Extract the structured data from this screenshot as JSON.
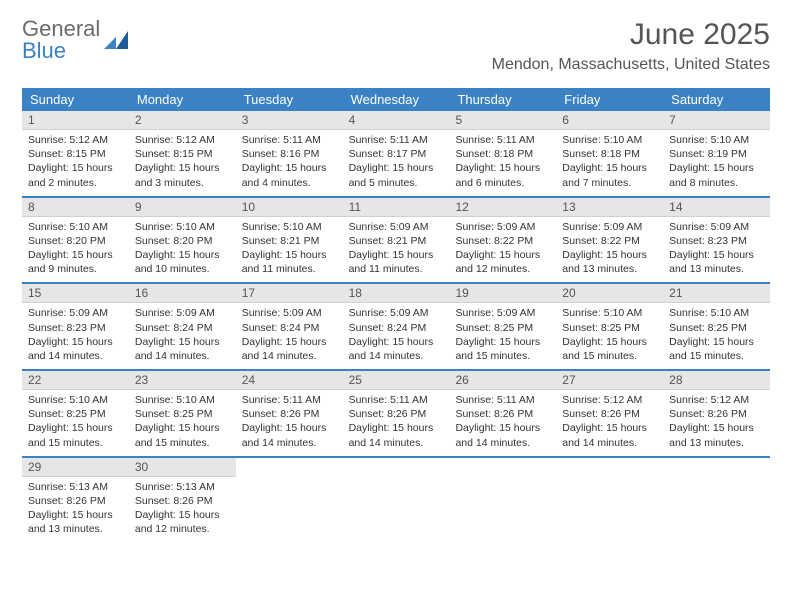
{
  "brand": {
    "word1": "General",
    "word2": "Blue"
  },
  "title": "June 2025",
  "location": "Mendon, Massachusetts, United States",
  "colors": {
    "header_bg": "#3b82c4",
    "header_text": "#ffffff",
    "daynum_bg": "#e6e6e6",
    "rule": "#3b82c4",
    "text": "#333333",
    "muted": "#555555"
  },
  "fonts": {
    "title_size": 30,
    "location_size": 16,
    "dayhead_size": 13,
    "cell_size": 10.5
  },
  "day_headers": [
    "Sunday",
    "Monday",
    "Tuesday",
    "Wednesday",
    "Thursday",
    "Friday",
    "Saturday"
  ],
  "weeks": [
    [
      {
        "n": "1",
        "sr": "Sunrise: 5:12 AM",
        "ss": "Sunset: 8:15 PM",
        "dl": "Daylight: 15 hours and 2 minutes."
      },
      {
        "n": "2",
        "sr": "Sunrise: 5:12 AM",
        "ss": "Sunset: 8:15 PM",
        "dl": "Daylight: 15 hours and 3 minutes."
      },
      {
        "n": "3",
        "sr": "Sunrise: 5:11 AM",
        "ss": "Sunset: 8:16 PM",
        "dl": "Daylight: 15 hours and 4 minutes."
      },
      {
        "n": "4",
        "sr": "Sunrise: 5:11 AM",
        "ss": "Sunset: 8:17 PM",
        "dl": "Daylight: 15 hours and 5 minutes."
      },
      {
        "n": "5",
        "sr": "Sunrise: 5:11 AM",
        "ss": "Sunset: 8:18 PM",
        "dl": "Daylight: 15 hours and 6 minutes."
      },
      {
        "n": "6",
        "sr": "Sunrise: 5:10 AM",
        "ss": "Sunset: 8:18 PM",
        "dl": "Daylight: 15 hours and 7 minutes."
      },
      {
        "n": "7",
        "sr": "Sunrise: 5:10 AM",
        "ss": "Sunset: 8:19 PM",
        "dl": "Daylight: 15 hours and 8 minutes."
      }
    ],
    [
      {
        "n": "8",
        "sr": "Sunrise: 5:10 AM",
        "ss": "Sunset: 8:20 PM",
        "dl": "Daylight: 15 hours and 9 minutes."
      },
      {
        "n": "9",
        "sr": "Sunrise: 5:10 AM",
        "ss": "Sunset: 8:20 PM",
        "dl": "Daylight: 15 hours and 10 minutes."
      },
      {
        "n": "10",
        "sr": "Sunrise: 5:10 AM",
        "ss": "Sunset: 8:21 PM",
        "dl": "Daylight: 15 hours and 11 minutes."
      },
      {
        "n": "11",
        "sr": "Sunrise: 5:09 AM",
        "ss": "Sunset: 8:21 PM",
        "dl": "Daylight: 15 hours and 11 minutes."
      },
      {
        "n": "12",
        "sr": "Sunrise: 5:09 AM",
        "ss": "Sunset: 8:22 PM",
        "dl": "Daylight: 15 hours and 12 minutes."
      },
      {
        "n": "13",
        "sr": "Sunrise: 5:09 AM",
        "ss": "Sunset: 8:22 PM",
        "dl": "Daylight: 15 hours and 13 minutes."
      },
      {
        "n": "14",
        "sr": "Sunrise: 5:09 AM",
        "ss": "Sunset: 8:23 PM",
        "dl": "Daylight: 15 hours and 13 minutes."
      }
    ],
    [
      {
        "n": "15",
        "sr": "Sunrise: 5:09 AM",
        "ss": "Sunset: 8:23 PM",
        "dl": "Daylight: 15 hours and 14 minutes."
      },
      {
        "n": "16",
        "sr": "Sunrise: 5:09 AM",
        "ss": "Sunset: 8:24 PM",
        "dl": "Daylight: 15 hours and 14 minutes."
      },
      {
        "n": "17",
        "sr": "Sunrise: 5:09 AM",
        "ss": "Sunset: 8:24 PM",
        "dl": "Daylight: 15 hours and 14 minutes."
      },
      {
        "n": "18",
        "sr": "Sunrise: 5:09 AM",
        "ss": "Sunset: 8:24 PM",
        "dl": "Daylight: 15 hours and 14 minutes."
      },
      {
        "n": "19",
        "sr": "Sunrise: 5:09 AM",
        "ss": "Sunset: 8:25 PM",
        "dl": "Daylight: 15 hours and 15 minutes."
      },
      {
        "n": "20",
        "sr": "Sunrise: 5:10 AM",
        "ss": "Sunset: 8:25 PM",
        "dl": "Daylight: 15 hours and 15 minutes."
      },
      {
        "n": "21",
        "sr": "Sunrise: 5:10 AM",
        "ss": "Sunset: 8:25 PM",
        "dl": "Daylight: 15 hours and 15 minutes."
      }
    ],
    [
      {
        "n": "22",
        "sr": "Sunrise: 5:10 AM",
        "ss": "Sunset: 8:25 PM",
        "dl": "Daylight: 15 hours and 15 minutes."
      },
      {
        "n": "23",
        "sr": "Sunrise: 5:10 AM",
        "ss": "Sunset: 8:25 PM",
        "dl": "Daylight: 15 hours and 15 minutes."
      },
      {
        "n": "24",
        "sr": "Sunrise: 5:11 AM",
        "ss": "Sunset: 8:26 PM",
        "dl": "Daylight: 15 hours and 14 minutes."
      },
      {
        "n": "25",
        "sr": "Sunrise: 5:11 AM",
        "ss": "Sunset: 8:26 PM",
        "dl": "Daylight: 15 hours and 14 minutes."
      },
      {
        "n": "26",
        "sr": "Sunrise: 5:11 AM",
        "ss": "Sunset: 8:26 PM",
        "dl": "Daylight: 15 hours and 14 minutes."
      },
      {
        "n": "27",
        "sr": "Sunrise: 5:12 AM",
        "ss": "Sunset: 8:26 PM",
        "dl": "Daylight: 15 hours and 14 minutes."
      },
      {
        "n": "28",
        "sr": "Sunrise: 5:12 AM",
        "ss": "Sunset: 8:26 PM",
        "dl": "Daylight: 15 hours and 13 minutes."
      }
    ],
    [
      {
        "n": "29",
        "sr": "Sunrise: 5:13 AM",
        "ss": "Sunset: 8:26 PM",
        "dl": "Daylight: 15 hours and 13 minutes."
      },
      {
        "n": "30",
        "sr": "Sunrise: 5:13 AM",
        "ss": "Sunset: 8:26 PM",
        "dl": "Daylight: 15 hours and 12 minutes."
      },
      {
        "empty": true
      },
      {
        "empty": true
      },
      {
        "empty": true
      },
      {
        "empty": true
      },
      {
        "empty": true
      }
    ]
  ]
}
